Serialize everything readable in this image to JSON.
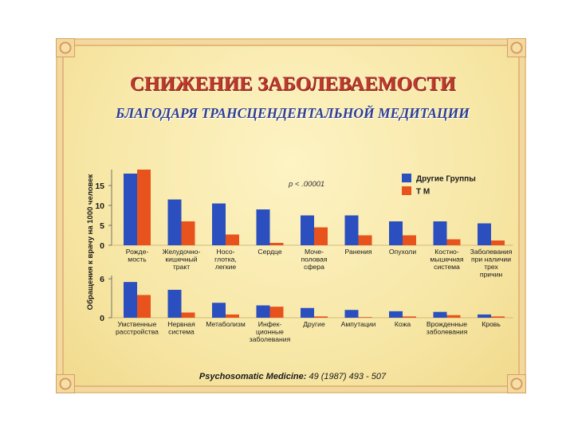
{
  "title": "СНИЖЕНИЕ ЗАБОЛЕВАЕМОСТИ",
  "subtitle": "БЛАГОДАРЯ ТРАНСЦЕНДЕНТАЛЬНОЙ МЕДИТАЦИИ",
  "citation": {
    "journal": "Psychosomatic Medicine:",
    "details": " 49 (1987) 493 - 507"
  },
  "colors": {
    "blue": "#2b4fbf",
    "orange": "#e8531d",
    "title_red": "#c03a2b",
    "subtitle_blue": "#2f3f8f"
  },
  "chart_data": [
    {
      "type": "bar",
      "ylabel": "Обращения к врачу на 1000 человек",
      "ylim": [
        0,
        19
      ],
      "yticks": [
        0,
        5,
        10,
        15
      ],
      "annotation": "p < .00001",
      "legend_position": "top-right",
      "series": [
        {
          "name": "Другие Группы",
          "color": "#2b4fbf",
          "values": [
            18,
            11.5,
            10.5,
            9,
            7.5,
            7.5,
            6,
            6,
            5.5
          ]
        },
        {
          "name": "Т М",
          "color": "#e8531d",
          "values": [
            19,
            6,
            2.7,
            0.6,
            4.5,
            2.5,
            2.5,
            1.5,
            1.2
          ]
        }
      ],
      "categories": [
        [
          "Рожде-",
          "мость"
        ],
        [
          "Желудочно-",
          "кишечный",
          "тракт"
        ],
        [
          "Носо-",
          "глотка,",
          "легкие"
        ],
        [
          "Сердце"
        ],
        [
          "Моче-",
          "половая",
          "сфера"
        ],
        [
          "Ранения"
        ],
        [
          "Опухоли"
        ],
        [
          "Костно-",
          "мышечная",
          "система"
        ],
        [
          "Заболевания",
          "при наличии",
          "трех",
          "причин"
        ]
      ]
    },
    {
      "type": "bar",
      "ylim": [
        0,
        6.5
      ],
      "yticks": [
        0,
        6
      ],
      "series": [
        {
          "name": "Другие Группы",
          "color": "#2b4fbf",
          "values": [
            5.5,
            4.3,
            2.3,
            1.9,
            1.5,
            1.2,
            1.0,
            0.9,
            0.5
          ]
        },
        {
          "name": "Т М",
          "color": "#e8531d",
          "values": [
            3.5,
            0.8,
            0.5,
            1.7,
            0.2,
            0.0,
            0.2,
            0.4,
            0.2
          ]
        }
      ],
      "categories": [
        [
          "Умственные",
          "расстройства"
        ],
        [
          "Нервная",
          "система"
        ],
        [
          "Метаболизм"
        ],
        [
          "Инфек-",
          "ционные",
          "заболевания"
        ],
        [
          "Другие"
        ],
        [
          "Ампутации"
        ],
        [
          "Кожа"
        ],
        [
          "Врожденные",
          "заболевания"
        ],
        [
          "Кровь"
        ]
      ]
    }
  ]
}
